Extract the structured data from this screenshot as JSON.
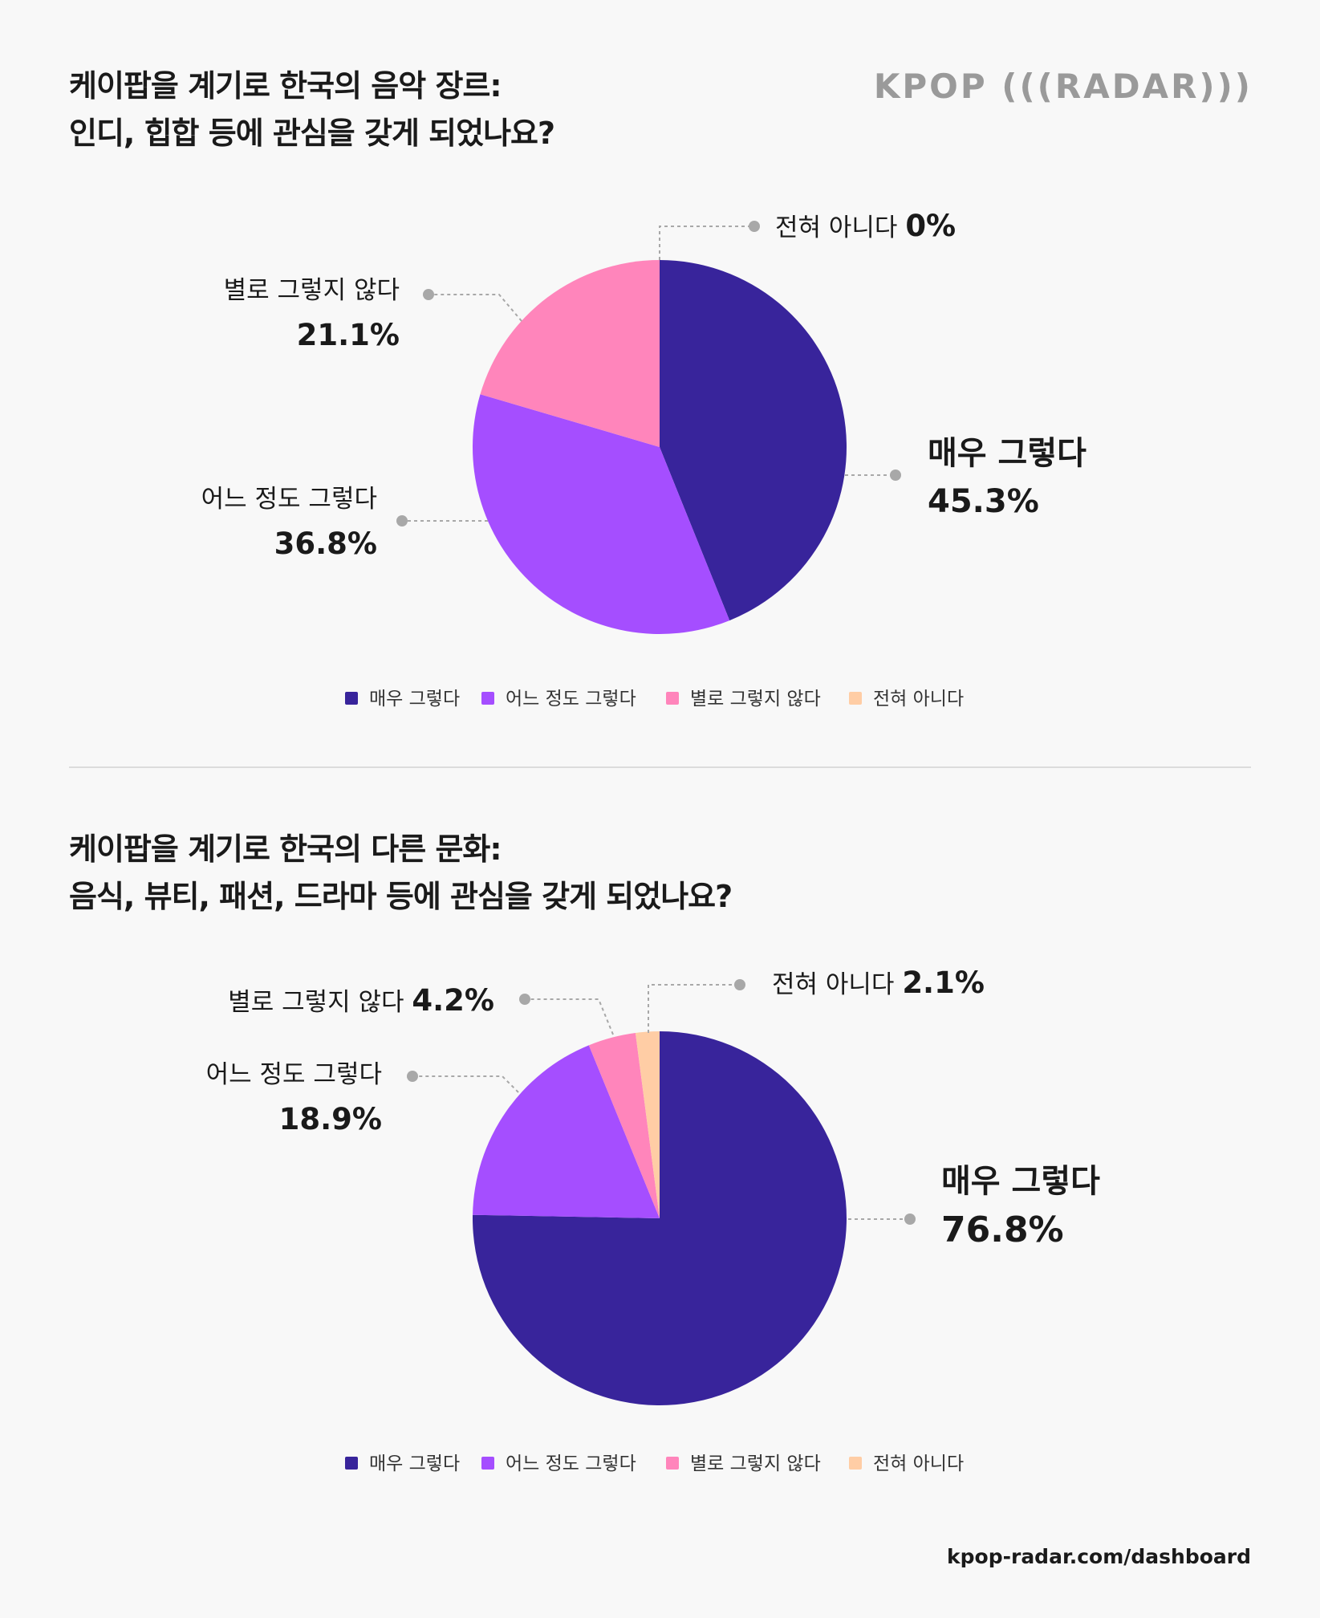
{
  "brand": "KPOP (((RADAR)))",
  "footer": "kpop-radar.com/dashboard",
  "colors": {
    "매우 그렇다": "#38249b",
    "어느 정도 그렇다": "#a54eff",
    "별로 그렇지 않다": "#ff85bb",
    "전혀 아니다": "#ffcda5",
    "leader": "#a8a8a8"
  },
  "chart_data": [
    {
      "type": "pie",
      "title": [
        "케이팝을 계기로 한국의 음악 장르:",
        "인디, 힙합 등에 관심을 갖게 되었나요?"
      ],
      "categories": [
        "매우 그렇다",
        "어느 정도 그렇다",
        "별로 그렇지 않다",
        "전혀 아니다"
      ],
      "values": [
        45.3,
        36.8,
        21.1,
        0
      ],
      "value_labels": [
        "45.3%",
        "36.8%",
        "21.1%",
        "0%"
      ],
      "legend": [
        "매우 그렇다",
        "어느 정도 그렇다",
        "별로 그렇지 않다",
        "전혀 아니다"
      ],
      "legend_position": "bottom"
    },
    {
      "type": "pie",
      "title": [
        "케이팝을 계기로 한국의 다른 문화:",
        "음식, 뷰티, 패션, 드라마 등에 관심을 갖게 되었나요?"
      ],
      "categories": [
        "매우 그렇다",
        "어느 정도 그렇다",
        "별로 그렇지 않다",
        "전혀 아니다"
      ],
      "values": [
        76.8,
        18.9,
        4.2,
        2.1
      ],
      "value_labels": [
        "76.8%",
        "18.9%",
        "4.2%",
        "2.1%"
      ],
      "legend": [
        "매우 그렇다",
        "어느 정도 그렇다",
        "별로 그렇지 않다",
        "전혀 아니다"
      ],
      "legend_position": "bottom"
    }
  ]
}
